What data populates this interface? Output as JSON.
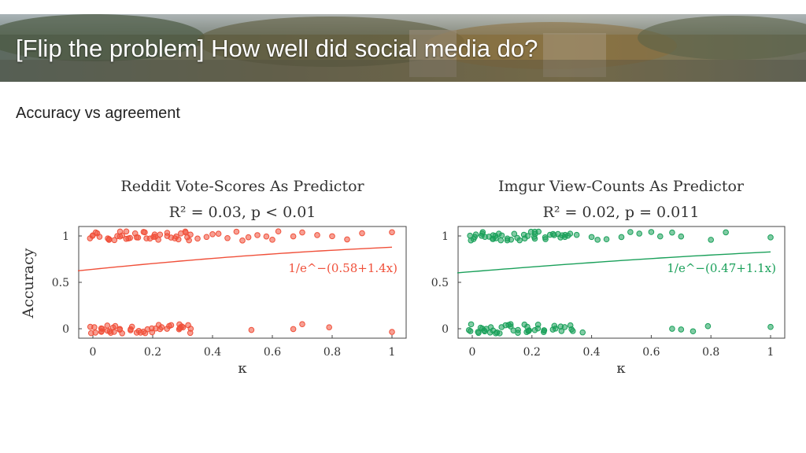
{
  "slide": {
    "title": "[Flip the problem] How well did social media do?",
    "subtitle": "Accuracy vs agreement"
  },
  "chart_data": [
    {
      "type": "scatter",
      "title": "Reddit Vote-Scores As Predictor",
      "subtitle": "R² = 0.03, p < 0.01",
      "xlabel": "κ",
      "ylabel": "Accuracy",
      "xlim": [
        -0.05,
        1.0
      ],
      "ylim": [
        0,
        1
      ],
      "xticks": [
        "0",
        "0.2",
        "0.4",
        "0.6",
        "0.8",
        "1"
      ],
      "yticks": [
        "0",
        "0.5",
        "1"
      ],
      "color": "#f0503a",
      "fit_label": "1/e^−(0.58+1.4x)",
      "fit": {
        "a": 0.58,
        "b": 1.4
      },
      "points_top_x": [
        0.0,
        0.02,
        0.05,
        0.08,
        0.1,
        0.12,
        0.15,
        0.18,
        0.2,
        0.22,
        0.25,
        0.28,
        0.3,
        0.32,
        0.35,
        0.38,
        0.4,
        0.42,
        0.45,
        0.48,
        0.5,
        0.52,
        0.55,
        0.58,
        0.6,
        0.62,
        0.67,
        0.7,
        0.75,
        0.8,
        0.85,
        0.9,
        1.0
      ],
      "points_bottom_x": [
        0.0,
        0.02,
        0.04,
        0.06,
        0.08,
        0.1,
        0.12,
        0.15,
        0.18,
        0.2,
        0.22,
        0.25,
        0.28,
        0.3,
        0.32,
        0.53,
        0.67,
        0.7,
        0.79,
        1.0
      ],
      "jitter": 0.05
    },
    {
      "type": "scatter",
      "title": "Imgur View-Counts As Predictor",
      "subtitle": "R² = 0.02, p = 0.011",
      "xlabel": "κ",
      "ylabel": "",
      "xlim": [
        -0.05,
        1.0
      ],
      "ylim": [
        0,
        1
      ],
      "xticks": [
        "0",
        "0.2",
        "0.4",
        "0.6",
        "0.8",
        "1"
      ],
      "yticks": [
        "0",
        "0.5",
        "1"
      ],
      "color": "#1aa05a",
      "fit_label": "1/e^−(0.47+1.1x)",
      "fit": {
        "a": 0.47,
        "b": 1.1
      },
      "points_top_x": [
        0.0,
        0.02,
        0.04,
        0.06,
        0.08,
        0.1,
        0.12,
        0.15,
        0.18,
        0.2,
        0.22,
        0.25,
        0.28,
        0.3,
        0.32,
        0.35,
        0.4,
        0.42,
        0.45,
        0.5,
        0.53,
        0.56,
        0.6,
        0.63,
        0.67,
        0.7,
        0.8,
        0.85,
        1.0
      ],
      "points_bottom_x": [
        0.0,
        0.02,
        0.04,
        0.06,
        0.08,
        0.1,
        0.12,
        0.15,
        0.18,
        0.2,
        0.22,
        0.25,
        0.28,
        0.3,
        0.33,
        0.37,
        0.67,
        0.7,
        0.74,
        0.79,
        1.0
      ],
      "jitter": 0.05
    }
  ]
}
